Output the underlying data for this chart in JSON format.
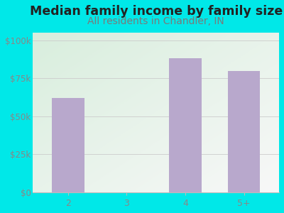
{
  "categories": [
    "2",
    "3",
    "4",
    "5+"
  ],
  "values": [
    62000,
    0,
    88000,
    80000
  ],
  "bar_color": "#b8a8cc",
  "title": "Median family income by family size",
  "subtitle": "All residents in Chandler, IN",
  "title_fontsize": 12.5,
  "subtitle_fontsize": 10,
  "title_color": "#222222",
  "subtitle_color": "#7a7a7a",
  "bg_color": "#00e8e8",
  "plot_bg_color_topleft": "#d8eedd",
  "plot_bg_color_bottomright": "#f8f8f8",
  "yticks": [
    0,
    25000,
    50000,
    75000,
    100000
  ],
  "ytick_labels": [
    "$0",
    "$25k",
    "$50k",
    "$75k",
    "$100k"
  ],
  "ylim": [
    0,
    105000
  ],
  "tick_color": "#888888",
  "grid_color": "#cccccc",
  "axis_line_color": "#bbbbbb",
  "bar_width": 0.55
}
